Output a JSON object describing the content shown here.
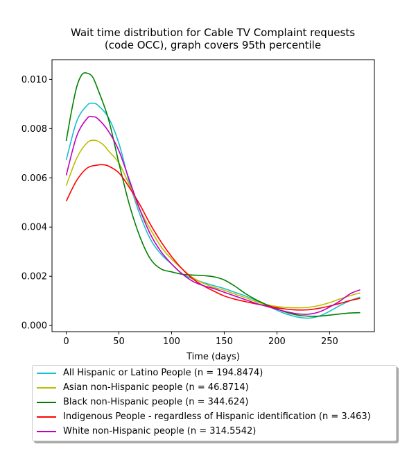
{
  "chart_data": {
    "type": "line",
    "title": "Wait time distribution  for Cable TV Complaint  requests\n(code OCC), graph covers 95th percentile",
    "title_lines": [
      "Wait time distribution  for Cable TV Complaint  requests",
      "(code OCC), graph covers 95th percentile"
    ],
    "xlabel": "Time (days)",
    "ylabel": "",
    "xlim": [
      -13.5,
      292.5
    ],
    "ylim": [
      -0.00025,
      0.0108
    ],
    "xticks": [
      0,
      50,
      100,
      150,
      200,
      250
    ],
    "xtick_labels": [
      "0",
      "50",
      "100",
      "150",
      "200",
      "250"
    ],
    "yticks": [
      0.0,
      0.002,
      0.004,
      0.006,
      0.008,
      0.01
    ],
    "ytick_labels": [
      "0.000",
      "0.002",
      "0.004",
      "0.006",
      "0.008",
      "0.010"
    ],
    "grid": false,
    "legend_position": "below plot",
    "series": [
      {
        "name": "All Hispanic or Latino People (n = 194.8474)",
        "color": "#17becf",
        "x": [
          0,
          10,
          20,
          25,
          30,
          40,
          50,
          60,
          70,
          80,
          90,
          100,
          110,
          120,
          130,
          140,
          150,
          160,
          170,
          180,
          190,
          200,
          210,
          220,
          230,
          240,
          250,
          260,
          270,
          279
        ],
        "y": [
          0.00672,
          0.0083,
          0.00895,
          0.00903,
          0.00895,
          0.00845,
          0.0074,
          0.0058,
          0.0045,
          0.0035,
          0.0029,
          0.0025,
          0.0021,
          0.0019,
          0.00175,
          0.00162,
          0.0015,
          0.00135,
          0.0012,
          0.00102,
          0.00082,
          0.00062,
          0.00045,
          0.00034,
          0.0003,
          0.00038,
          0.00058,
          0.00082,
          0.00102,
          0.00115
        ]
      },
      {
        "name": "Asian non-Hispanic people (n = 46.8714)",
        "color": "#bcbd00",
        "x": [
          0,
          10,
          20,
          28,
          35,
          40,
          50,
          60,
          70,
          80,
          90,
          100,
          110,
          120,
          130,
          140,
          150,
          160,
          170,
          180,
          190,
          200,
          210,
          220,
          230,
          240,
          250,
          260,
          270,
          279
        ],
        "y": [
          0.00568,
          0.0068,
          0.00743,
          0.00752,
          0.00735,
          0.0071,
          0.0066,
          0.0057,
          0.0047,
          0.0039,
          0.0032,
          0.0027,
          0.0023,
          0.00195,
          0.00172,
          0.00155,
          0.00143,
          0.00128,
          0.00113,
          0.00097,
          0.00085,
          0.00077,
          0.00073,
          0.00072,
          0.00074,
          0.00081,
          0.00093,
          0.00108,
          0.00122,
          0.00132
        ]
      },
      {
        "name": "Black non-Hispanic people (n = 344.624)",
        "color": "#008000",
        "x": [
          0,
          5,
          10,
          15,
          20,
          25,
          30,
          40,
          50,
          60,
          70,
          80,
          90,
          100,
          110,
          120,
          130,
          140,
          150,
          160,
          170,
          180,
          190,
          200,
          210,
          220,
          230,
          240,
          250,
          260,
          270,
          279
        ],
        "y": [
          0.0075,
          0.0087,
          0.0097,
          0.0102,
          0.01025,
          0.0101,
          0.0096,
          0.0084,
          0.0066,
          0.0049,
          0.0036,
          0.0027,
          0.0023,
          0.00218,
          0.00208,
          0.00205,
          0.00203,
          0.00198,
          0.00185,
          0.0016,
          0.0013,
          0.00105,
          0.00085,
          0.00068,
          0.00052,
          0.00042,
          0.00038,
          0.00038,
          0.00042,
          0.00047,
          0.00051,
          0.00052
        ]
      },
      {
        "name": "Indigenous People - regardless of Hispanic identification (n = 3.463)",
        "color": "#ff0000",
        "x": [
          0,
          10,
          20,
          30,
          35,
          40,
          50,
          60,
          70,
          80,
          90,
          100,
          110,
          120,
          130,
          140,
          150,
          160,
          170,
          180,
          190,
          200,
          210,
          220,
          230,
          240,
          250,
          260,
          270,
          279
        ],
        "y": [
          0.00505,
          0.0059,
          0.0064,
          0.00652,
          0.00653,
          0.00648,
          0.0062,
          0.0056,
          0.0049,
          0.0041,
          0.0034,
          0.0028,
          0.0023,
          0.0019,
          0.00162,
          0.0014,
          0.0012,
          0.00107,
          0.00097,
          0.00088,
          0.0008,
          0.00072,
          0.00066,
          0.00063,
          0.00064,
          0.0007,
          0.00079,
          0.0009,
          0.00102,
          0.0011
        ]
      },
      {
        "name": "White non-Hispanic people (n = 314.5542)",
        "color": "#bf00bf",
        "x": [
          0,
          10,
          20,
          25,
          30,
          40,
          50,
          60,
          70,
          80,
          90,
          100,
          110,
          120,
          130,
          140,
          150,
          160,
          170,
          180,
          190,
          200,
          210,
          220,
          230,
          240,
          250,
          260,
          270,
          279
        ],
        "y": [
          0.0061,
          0.0077,
          0.00842,
          0.00848,
          0.0084,
          0.0079,
          0.0071,
          0.0059,
          0.0047,
          0.0037,
          0.003,
          0.0025,
          0.0021,
          0.0018,
          0.00162,
          0.0015,
          0.00135,
          0.0012,
          0.00105,
          0.0009,
          0.00078,
          0.00066,
          0.00055,
          0.00047,
          0.00046,
          0.00055,
          0.00075,
          0.001,
          0.0013,
          0.00145
        ]
      }
    ]
  }
}
